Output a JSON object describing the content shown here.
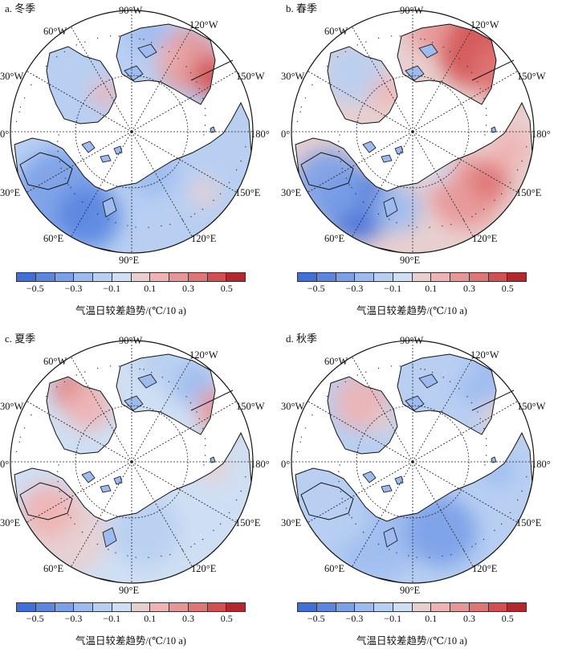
{
  "figure": {
    "panels": [
      {
        "id": "a",
        "title": "a. 冬季",
        "pattern": "winter"
      },
      {
        "id": "b",
        "title": "b. 春季",
        "pattern": "spring"
      },
      {
        "id": "c",
        "title": "c. 夏季",
        "pattern": "summer"
      },
      {
        "id": "d",
        "title": "d. 秋季",
        "pattern": "autumn"
      }
    ],
    "longitude_labels": {
      "w90": "90°W",
      "w120": "120°W",
      "w150": "150°W",
      "e180": "180°",
      "e150": "150°E",
      "e120": "120°E",
      "e90": "90°E",
      "e60": "60°E",
      "e30": "30°E",
      "e0": "0°",
      "w30": "30°W",
      "w60": "60°W"
    },
    "colorbar": {
      "label": "气温日较差趋势/(℃/10 a)",
      "ticks": [
        "−0.5",
        "−0.3",
        "−0.1",
        "0.1",
        "0.3",
        "0.5"
      ],
      "colors": [
        "#3f6fd8",
        "#5a86e0",
        "#7aa0e8",
        "#9dbbef",
        "#b8cff2",
        "#cfdff3",
        "#e8cfcf",
        "#efb3b3",
        "#e89595",
        "#e07575",
        "#d44f4f",
        "#b5272f"
      ]
    }
  }
}
